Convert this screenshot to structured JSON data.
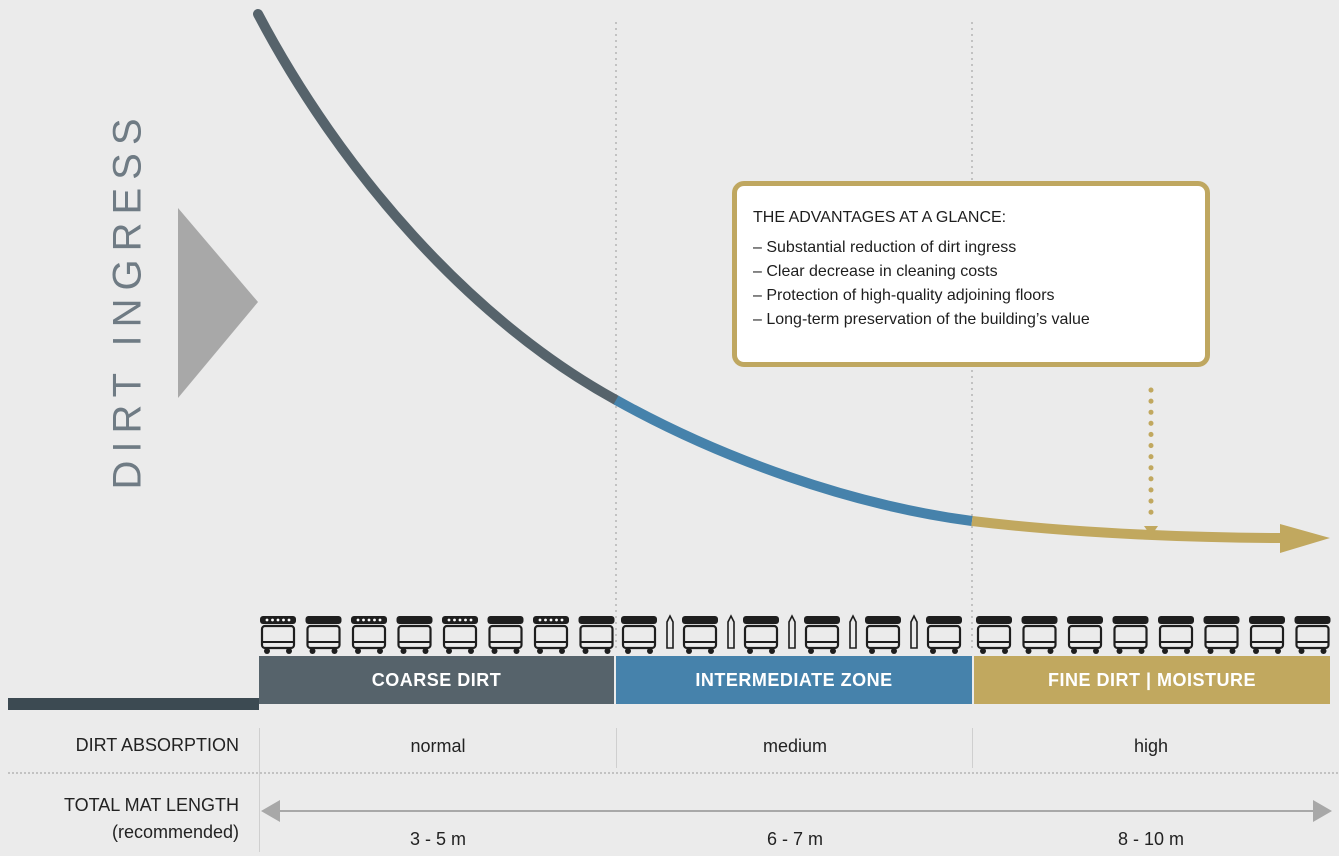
{
  "axis_title": "DIRT INGRESS",
  "advantages": {
    "title": "THE ADVANTAGES AT A GLANCE:",
    "items": [
      "– Substantial reduction of dirt ingress",
      "– Clear decrease in cleaning costs",
      "– Protection of high-quality adjoining floors",
      "– Long-term preservation of the building’s value"
    ]
  },
  "zones": [
    {
      "label": "COARSE DIRT",
      "color": "#56636b"
    },
    {
      "label": "INTERMEDIATE ZONE",
      "color": "#4682ab"
    },
    {
      "label": "FINE DIRT | MOISTURE",
      "color": "#c1a85f"
    }
  ],
  "rows": {
    "absorption": {
      "label": "DIRT ABSORPTION",
      "values": [
        "normal",
        "medium",
        "high"
      ]
    },
    "length": {
      "label_line1": "TOTAL MAT LENGTH",
      "label_line2": "(recommended)",
      "values": [
        "3 - 5 m",
        "6 - 7 m",
        "8 - 10 m"
      ]
    }
  },
  "colors": {
    "background": "#ebebeb",
    "coarse": "#56636b",
    "intermediate": "#4682ab",
    "fine": "#c1a85f",
    "triangle": "#a8a8a8"
  },
  "icons": [
    "dirt-ingress-arrow-icon",
    "cleaning-cart-icon",
    "bottle-icon",
    "arrowhead-icon"
  ]
}
